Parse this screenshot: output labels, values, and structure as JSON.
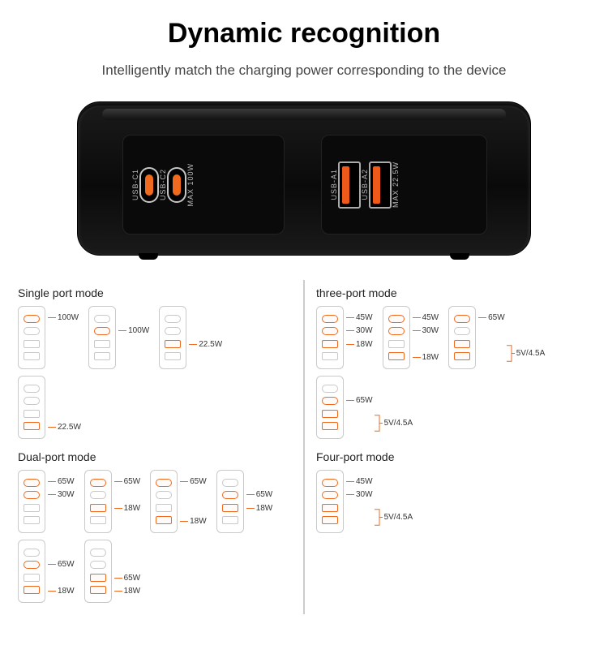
{
  "title": "Dynamic recognition",
  "subtitle": "Intelligently match the charging power corresponding to the device",
  "device": {
    "left_panel": {
      "port1": "USB-C1",
      "port2": "USB-C2",
      "max": "MAX 100W"
    },
    "right_panel": {
      "port1": "USB-A1",
      "port2": "USB-A2",
      "max": "MAX 22.5W"
    }
  },
  "colors": {
    "accent": "#ef6a1f",
    "port_off": "#c8c8c8",
    "divider": "#cccccc"
  },
  "left_column": {
    "single": {
      "title": "Single port mode",
      "chargers": [
        {
          "ports": [
            "on",
            "off",
            "off",
            "off"
          ],
          "labels": [
            "100W",
            "",
            "",
            ""
          ]
        },
        {
          "ports": [
            "off",
            "on",
            "off",
            "off"
          ],
          "labels": [
            "",
            "100W",
            "",
            ""
          ]
        },
        {
          "ports": [
            "off",
            "off",
            "on",
            "off"
          ],
          "labels": [
            "",
            "",
            "22.5W",
            ""
          ]
        },
        {
          "ports": [
            "off",
            "off",
            "off",
            "on"
          ],
          "labels": [
            "",
            "",
            "",
            "22.5W"
          ]
        }
      ]
    },
    "dual": {
      "title": "Dual-port mode",
      "chargers": [
        {
          "ports": [
            "on",
            "on",
            "off",
            "off"
          ],
          "labels": [
            "65W",
            "30W",
            "",
            ""
          ]
        },
        {
          "ports": [
            "on",
            "off",
            "on",
            "off"
          ],
          "labels": [
            "65W",
            "",
            "18W",
            ""
          ]
        },
        {
          "ports": [
            "on",
            "off",
            "off",
            "on"
          ],
          "labels": [
            "65W",
            "",
            "",
            "18W"
          ]
        },
        {
          "ports": [
            "off",
            "on",
            "on",
            "off"
          ],
          "labels": [
            "",
            "65W",
            "18W",
            ""
          ]
        },
        {
          "ports": [
            "off",
            "on",
            "off",
            "on"
          ],
          "labels": [
            "",
            "65W",
            "",
            "18W"
          ]
        },
        {
          "ports": [
            "off",
            "off",
            "on",
            "on"
          ],
          "labels": [
            "",
            "",
            "65W",
            "18W"
          ]
        }
      ]
    }
  },
  "right_column": {
    "three": {
      "title": "three-port mode",
      "chargers": [
        {
          "ports": [
            "on",
            "on",
            "on",
            "off"
          ],
          "labels": [
            "45W",
            "30W",
            "18W",
            ""
          ]
        },
        {
          "ports": [
            "on",
            "on",
            "off",
            "on"
          ],
          "labels": [
            "45W",
            "30W",
            "",
            "18W"
          ]
        },
        {
          "ports": [
            "on",
            "off",
            "on",
            "on"
          ],
          "labels": [
            "65W",
            "",
            "",
            ""
          ],
          "bracket": {
            "rows": [
              2,
              3
            ],
            "label": "5V/4.5A"
          }
        },
        {
          "ports": [
            "off",
            "on",
            "on",
            "on"
          ],
          "labels": [
            "",
            "65W",
            "",
            ""
          ],
          "bracket": {
            "rows": [
              2,
              3
            ],
            "label": "5V/4.5A"
          }
        }
      ]
    },
    "four": {
      "title": "Four-port mode",
      "chargers": [
        {
          "ports": [
            "on",
            "on",
            "on",
            "on"
          ],
          "labels": [
            "45W",
            "30W",
            "",
            ""
          ],
          "bracket": {
            "rows": [
              2,
              3
            ],
            "label": "5V/4.5A"
          }
        }
      ]
    }
  }
}
